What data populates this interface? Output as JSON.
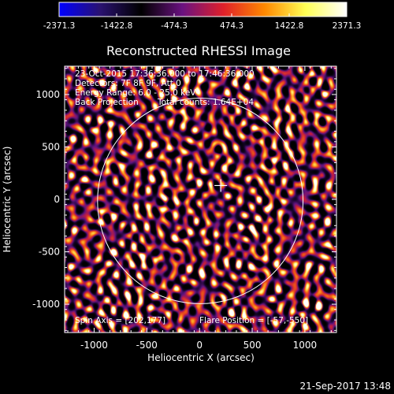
{
  "chart_data": {
    "type": "heatmap",
    "title": "Reconstructed RHESSI Image",
    "xlabel": "Heliocentric X (arcsec)",
    "ylabel": "Heliocentric Y (arcsec)",
    "xlim": [
      -1280,
      1300
    ],
    "ylim": [
      -1270,
      1270
    ],
    "x_ticks": [
      -1000,
      -500,
      0,
      500,
      1000
    ],
    "y_ticks": [
      -1000,
      -500,
      0,
      500,
      1000
    ],
    "colorbar": {
      "range": [
        -2371.3,
        2371.3
      ],
      "ticks": [
        -2371.3,
        -1422.8,
        -474.3,
        474.3,
        1422.8,
        2371.3
      ],
      "stops": [
        "#0000ff",
        "#2a1270",
        "#000000",
        "#6a1280",
        "#e0202a",
        "#ff8800",
        "#ffff55",
        "#ffffff"
      ]
    },
    "solar_disk_radius": 975,
    "source_marker": [
      202,
      177
    ],
    "annotations": {
      "time_range": "23-Oct-2015 17:36:36.000 to 17:46:36.000",
      "detectors": "Detectors: 7F 8F 9F, Att 0",
      "energy": "Energy Range: 6.0 - 25.0 keV",
      "method": "Back Projection",
      "counts": "Total counts: 1.64E+04",
      "spin_axis": "Spin Axis = [202,177]",
      "flare_position": "Flare Position = [-57,-550]"
    }
  },
  "footer": {
    "timestamp": "21-Sep-2017 13:48"
  }
}
